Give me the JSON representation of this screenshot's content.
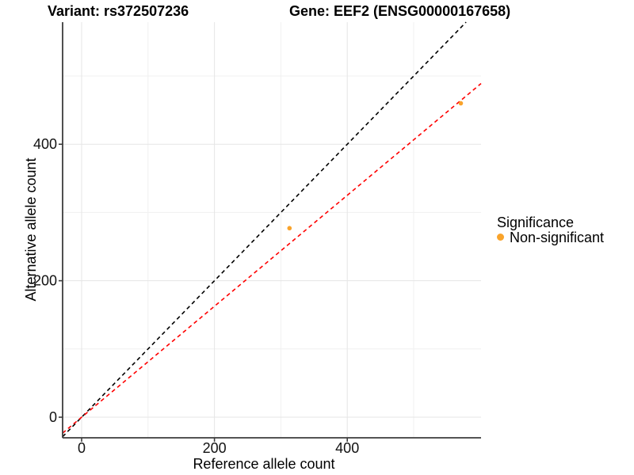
{
  "figure": {
    "background": "#ffffff"
  },
  "chart_data": {
    "type": "scatter",
    "titles": {
      "left": "Variant: rs372507236",
      "right": "Gene: EEF2 (ENSG00000167658)"
    },
    "xlabel": "Reference allele count",
    "ylabel": "Alternative allele count",
    "x_ticks": [
      0,
      200,
      400
    ],
    "y_ticks": [
      0,
      200,
      400
    ],
    "x_minor_gridlines": [
      100,
      300,
      500
    ],
    "y_minor_gridlines": [
      100,
      300,
      500
    ],
    "xlim": [
      -29,
      601
    ],
    "ylim": [
      -30,
      579
    ],
    "grid": true,
    "legend": {
      "position": "right",
      "title": "Significance",
      "items": [
        {
          "label": "Non-significant",
          "color": "#F9A32B"
        }
      ]
    },
    "series": [
      {
        "name": "Non-significant",
        "color": "#F9A32B",
        "points": [
          {
            "x": 313,
            "y": 277
          },
          {
            "x": 571,
            "y": 460
          }
        ]
      }
    ],
    "reference_lines": [
      {
        "name": "identity-line",
        "slope": 1.0,
        "intercept": 0,
        "color": "#000000",
        "style": "dashed"
      },
      {
        "name": "fit-line",
        "slope": 0.813,
        "intercept": 0,
        "color": "#FF0000",
        "style": "dashed"
      }
    ]
  }
}
